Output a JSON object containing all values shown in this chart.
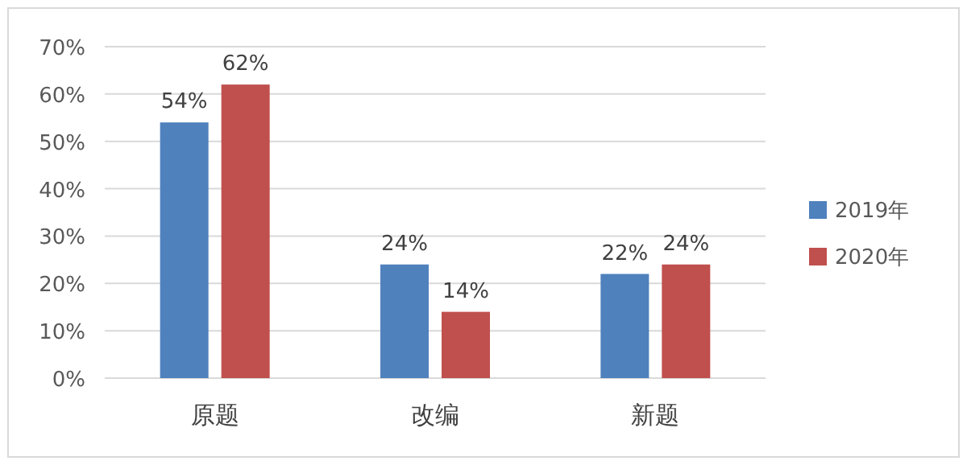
{
  "chart_data": {
    "type": "bar",
    "categories": [
      "原题",
      "改编",
      "新题"
    ],
    "series": [
      {
        "name": "2019年",
        "color": "#4f81bd",
        "values": [
          54,
          24,
          22
        ],
        "value_labels": [
          "54%",
          "24%",
          "22%"
        ]
      },
      {
        "name": "2020年",
        "color": "#c0504d",
        "values": [
          62,
          14,
          24
        ],
        "value_labels": [
          "62%",
          "14%",
          "24%"
        ]
      }
    ],
    "ylim": [
      0,
      70
    ],
    "yticks": [
      {
        "value": 0,
        "label": "0%"
      },
      {
        "value": 10,
        "label": "10%"
      },
      {
        "value": 20,
        "label": "20%"
      },
      {
        "value": 30,
        "label": "30%"
      },
      {
        "value": 40,
        "label": "40%"
      },
      {
        "value": 50,
        "label": "50%"
      },
      {
        "value": 60,
        "label": "60%"
      },
      {
        "value": 70,
        "label": "70%"
      }
    ],
    "grid": "y",
    "legend": "right"
  }
}
